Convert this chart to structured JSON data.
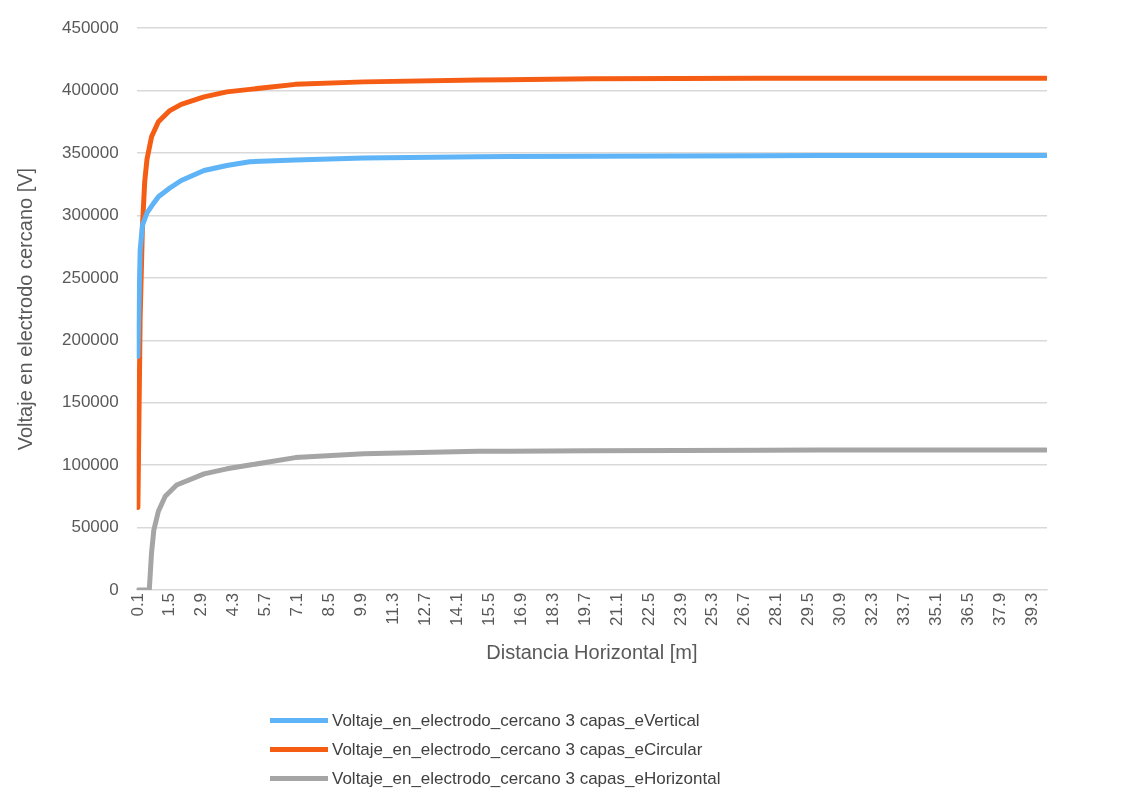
{
  "chart_data": {
    "type": "line",
    "xlabel": "Distancia Horizontal [m]",
    "ylabel": "Voltaje en electrodo cercano [V]",
    "xlim": [
      0.05,
      39.95
    ],
    "xticks": [
      0.1,
      1.5,
      2.9,
      4.3,
      5.7,
      7.1,
      8.5,
      9.9,
      11.3,
      12.7,
      14.1,
      15.5,
      16.9,
      18.3,
      19.7,
      21.1,
      22.5,
      23.9,
      25.3,
      26.7,
      28.1,
      29.5,
      30.9,
      32.3,
      33.7,
      35.1,
      36.5,
      37.9,
      39.3
    ],
    "ylim": [
      0,
      450000
    ],
    "yticks": [
      0,
      50000,
      100000,
      150000,
      200000,
      250000,
      300000,
      350000,
      400000,
      450000
    ],
    "grid": "y",
    "legend": "bottom",
    "marker": "none",
    "line_style": "solid",
    "series": [
      {
        "name": "Voltaje_en_electrodo_cercano 3 capas_eVertical",
        "color": "#5fb4f7",
        "x": [
          0.1,
          0.2,
          0.3,
          0.5,
          0.8,
          1,
          1.5,
          2,
          3,
          4,
          5,
          7,
          10,
          15,
          20,
          30,
          39.9
        ],
        "values": [
          187000,
          272000,
          292000,
          302000,
          310000,
          315000,
          322000,
          328000,
          336000,
          340000,
          343000,
          344500,
          346000,
          347000,
          347500,
          348000,
          348000
        ]
      },
      {
        "name": "Voltaje_en_electrodo_cercano 3 capas_eCircular",
        "color": "#f55d15",
        "x": [
          0.1,
          0.2,
          0.3,
          0.4,
          0.5,
          0.7,
          1,
          1.5,
          2,
          3,
          4,
          5,
          7,
          10,
          15,
          20,
          30,
          39.9
        ],
        "values": [
          66000,
          218000,
          291000,
          327000,
          345000,
          363000,
          375000,
          384000,
          389000,
          395000,
          399000,
          401000,
          405000,
          407000,
          408500,
          409500,
          410000,
          410000
        ]
      },
      {
        "name": "Voltaje_en_electrodo_cercano 3 capas_eHorizontal",
        "color": "#a5a5a5",
        "x": [
          0.1,
          0.6,
          0.7,
          0.8,
          1,
          1.3,
          1.8,
          3,
          4,
          5,
          7,
          10,
          15,
          20,
          30,
          39.9
        ],
        "values": [
          0,
          0,
          30000,
          48000,
          63000,
          75000,
          84000,
          93000,
          97000,
          100000,
          106000,
          109000,
          111000,
          111500,
          112000,
          112000
        ]
      }
    ]
  }
}
